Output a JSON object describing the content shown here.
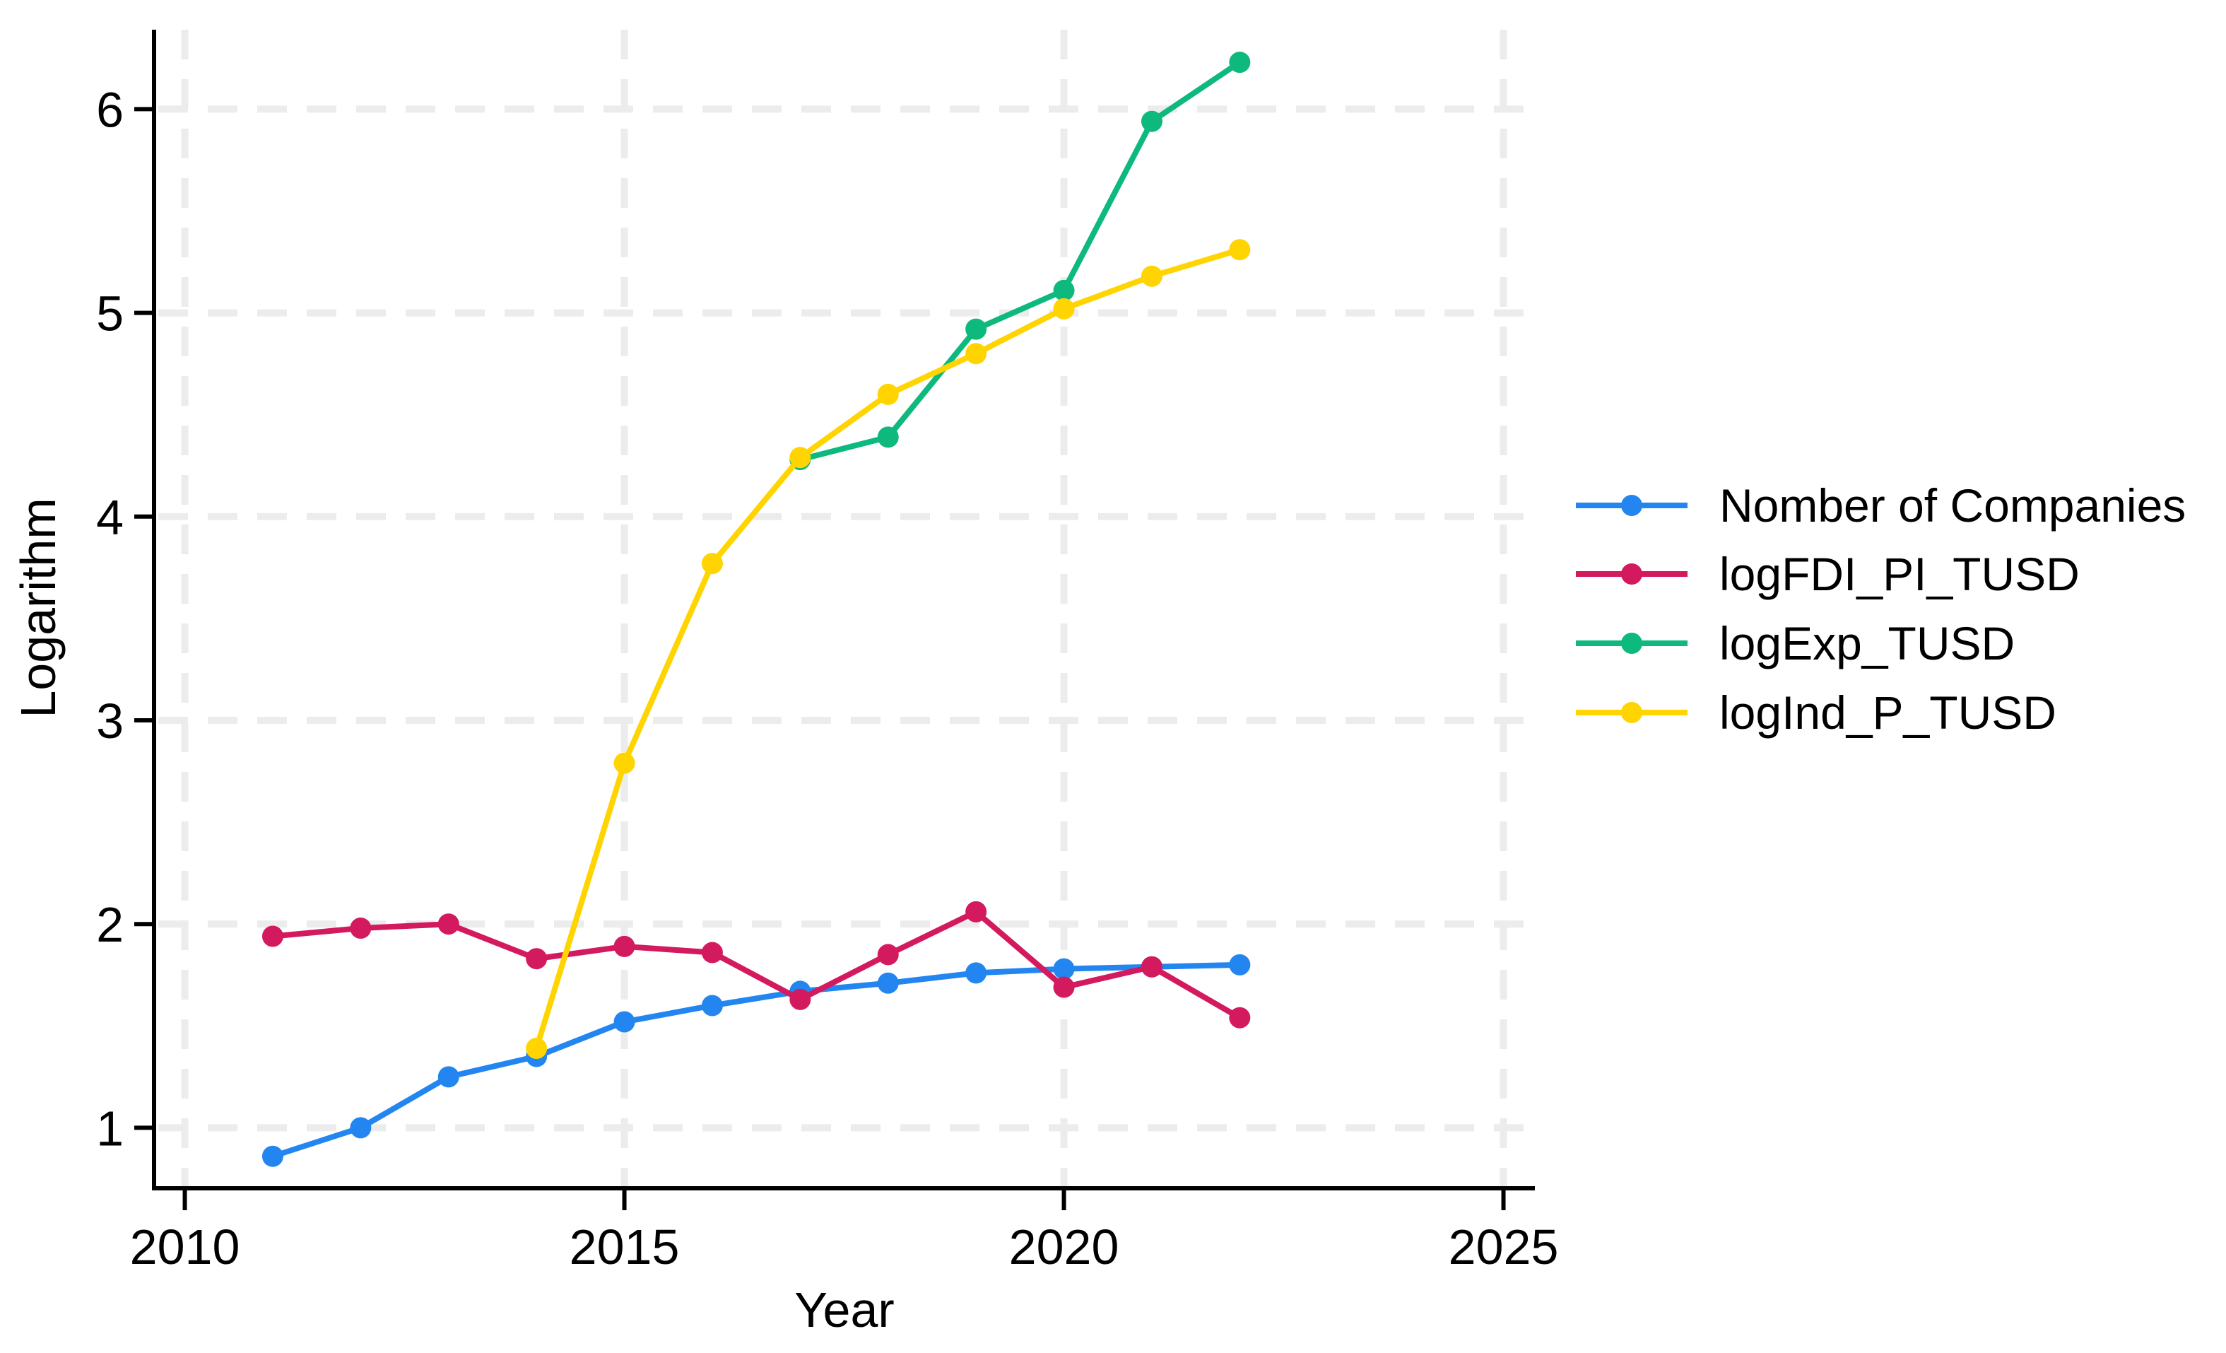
{
  "figure": {
    "background": "#FFFFFF",
    "axis_color": "#000000",
    "grid_color": "#ECECEC",
    "text_color": "#000000"
  },
  "chart_data": {
    "type": "line",
    "title": "",
    "xlabel": "Year",
    "ylabel": "Logarithm",
    "grid": true,
    "legend_position": "right-of-plot",
    "xlim": [
      2009.65,
      2025.35
    ],
    "ylim": [
      0.7,
      6.39
    ],
    "x_ticks": [
      2010,
      2015,
      2020,
      2025
    ],
    "y_ticks": [
      1,
      2,
      3,
      4,
      5,
      6
    ],
    "series": [
      {
        "name": "Nomber of Companies",
        "color": "#2386F0",
        "x": [
          2011,
          2012,
          2013,
          2014,
          2015,
          2016,
          2017,
          2018,
          2019,
          2020,
          2021,
          2022
        ],
        "y": [
          0.86,
          1.0,
          1.25,
          1.35,
          1.52,
          1.6,
          1.67,
          1.71,
          1.76,
          1.78,
          1.79,
          1.8
        ]
      },
      {
        "name": "logFDI_PI_TUSD",
        "color": "#D41A5F",
        "x": [
          2011,
          2012,
          2013,
          2014,
          2015,
          2016,
          2017,
          2018,
          2019,
          2020,
          2021,
          2022
        ],
        "y": [
          1.94,
          1.98,
          2.0,
          1.83,
          1.89,
          1.86,
          1.63,
          1.85,
          2.06,
          1.69,
          1.79,
          1.54
        ]
      },
      {
        "name": "logExp_TUSD",
        "color": "#0DB97C",
        "x": [
          2017,
          2018,
          2019,
          2020,
          2021,
          2022
        ],
        "y": [
          4.28,
          4.39,
          4.92,
          5.11,
          5.94,
          6.23
        ]
      },
      {
        "name": "logInd_P_TUSD",
        "color": "#FFD400",
        "x": [
          2014,
          2015,
          2016,
          2017,
          2018,
          2019,
          2020,
          2021,
          2022
        ],
        "y": [
          1.39,
          2.79,
          3.77,
          4.29,
          4.6,
          4.8,
          5.02,
          5.18,
          5.31
        ]
      }
    ]
  }
}
